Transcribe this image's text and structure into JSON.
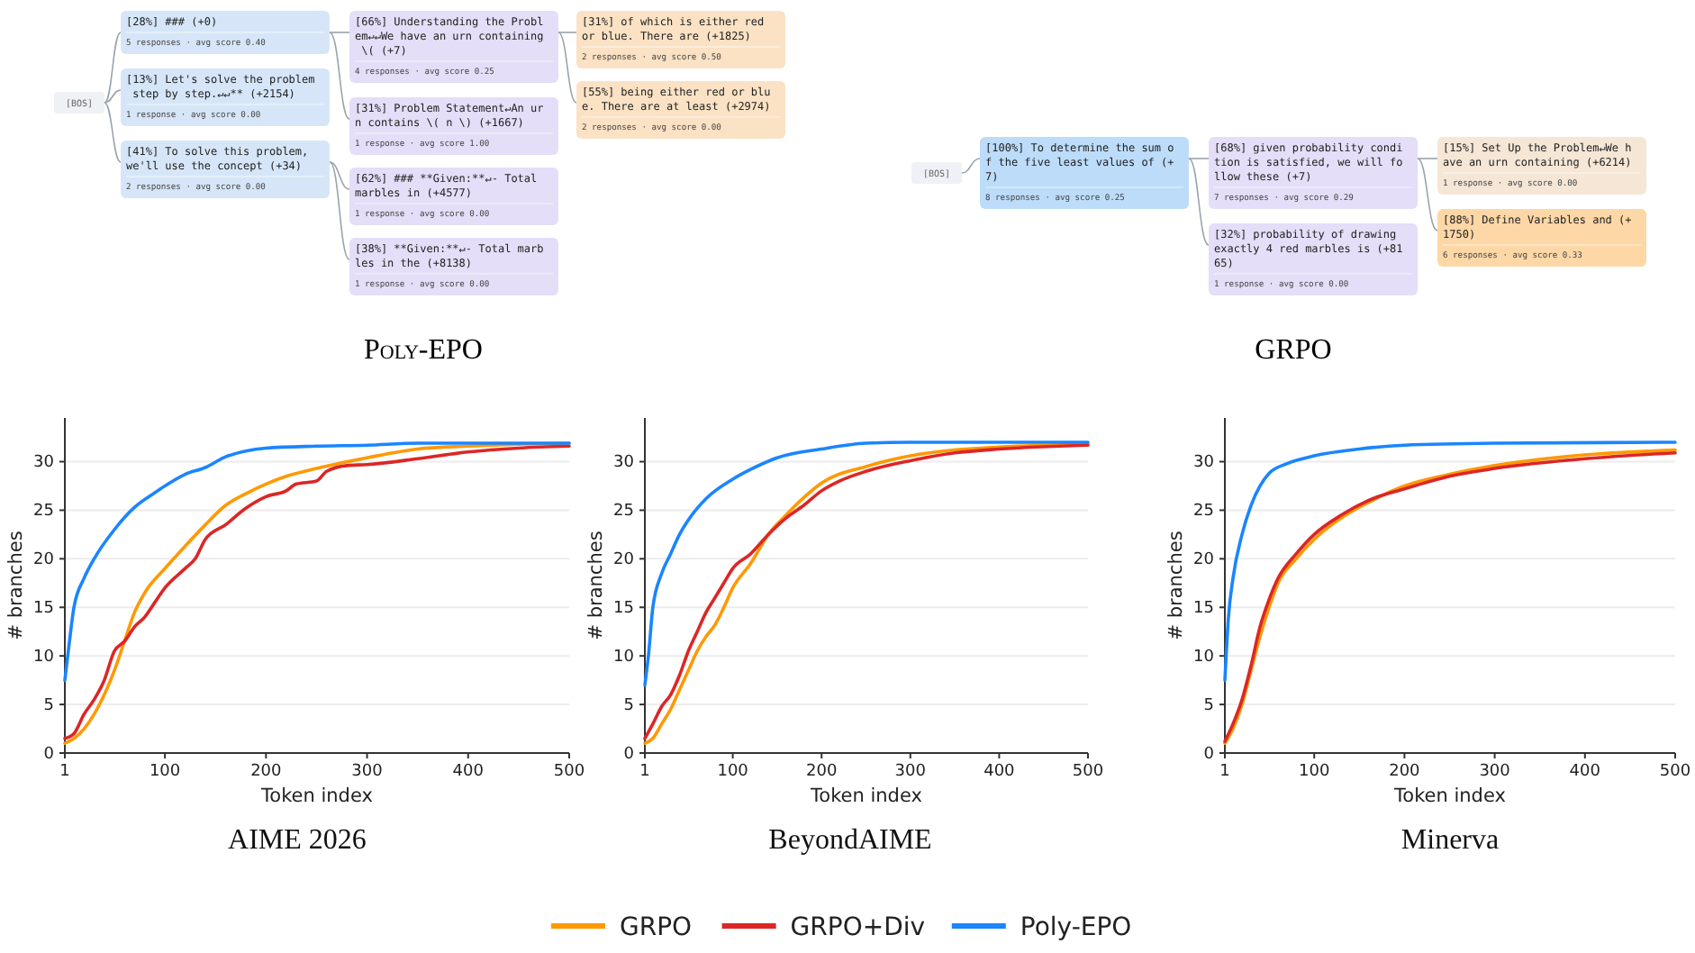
{
  "chart_data": [
    {
      "type": "other",
      "title": "Poly-EPO",
      "annotations": [
        "[BOS]",
        "[28%] ### (+0)",
        "5 responses · avg score 0.40",
        "[13%] Let's solve the problem step by step.↵↵** (+2154)",
        "1 response · avg score 0.00",
        "[41%] To solve this problem, we'll use the concept (+34)",
        "2 responses · avg score 0.00",
        "[66%] Understanding the Problem↵↵We have an urn containing \\( (+7)",
        "4 responses · avg score 0.25",
        "[31%] Problem Statement↵An urn contains \\( n \\) (+1667)",
        "1 response · avg score 1.00",
        "[62%] ### **Given:**↵- Total marbles in (+4577)",
        "1 response · avg score 0.00",
        "[38%] **Given:**↵- Total marbles in the (+8138)",
        "1 response · avg score 0.00",
        "[31%] of which is either red or blue. There are (+1825)",
        "2 responses · avg score 0.50",
        "[55%] being either red or blue. There are at least (+2974)",
        "2 responses · avg score 0.00"
      ]
    },
    {
      "type": "other",
      "title": "GRPO",
      "annotations": [
        "[BOS]",
        "[100%] To determine the sum of the five least values of (+7)",
        "8 responses · avg score 0.25",
        "[68%] given probability condition is satisfied, we will follow these (+7)",
        "7 responses · avg score 0.29",
        "[32%] probability of drawing exactly 4 red marbles is (+8165)",
        "1 response · avg score 0.00",
        "[15%] Set Up the Problem↵We have an urn containing (+6214)",
        "1 response · avg score 0.00",
        "[88%] Define Variables and (+1750)",
        "6 responses · avg score 0.33"
      ]
    },
    {
      "type": "line",
      "title": "AIME 2026",
      "xlabel": "Token index",
      "ylabel": "# branches",
      "xlim": [
        1,
        500
      ],
      "xticks": [
        1,
        100,
        200,
        300,
        400,
        500
      ],
      "ylim": [
        0,
        34.5
      ],
      "yticks": [
        0,
        5,
        10,
        15,
        20,
        25,
        30
      ],
      "grid": "y",
      "series": [
        {
          "color": "#ff9900",
          "x": [
            1,
            10,
            20,
            30,
            40,
            50,
            60,
            70,
            80,
            100,
            120,
            140,
            160,
            180,
            200,
            220,
            250,
            300,
            350,
            400,
            450,
            500
          ],
          "values": [
            1,
            1.5,
            2.5,
            4,
            6,
            8.5,
            11.5,
            14.5,
            16.5,
            19,
            21.3,
            23.5,
            25.5,
            26.7,
            27.7,
            28.5,
            29.3,
            30.4,
            31.3,
            31.6,
            31.8,
            31.9
          ]
        },
        {
          "color": "#dc2626",
          "x": [
            1,
            10,
            20,
            30,
            40,
            50,
            60,
            70,
            80,
            90,
            100,
            120,
            130,
            140,
            160,
            180,
            200,
            220,
            230,
            250,
            260,
            280,
            300,
            350,
            400,
            450,
            500
          ],
          "values": [
            1.5,
            2,
            4,
            5.5,
            7.5,
            10.5,
            11.5,
            13,
            14,
            15.5,
            17,
            19,
            20,
            22,
            23.5,
            25.2,
            26.4,
            27,
            27.7,
            28,
            29,
            29.6,
            29.7,
            30.3,
            31,
            31.4,
            31.6
          ]
        },
        {
          "color": "#1a85ff",
          "x": [
            1,
            5,
            10,
            20,
            30,
            50,
            70,
            90,
            100,
            120,
            140,
            160,
            180,
            200,
            250,
            300,
            350,
            400,
            500
          ],
          "values": [
            7.5,
            11,
            15,
            18,
            20,
            23,
            25.3,
            26.8,
            27.5,
            28.7,
            29.4,
            30.5,
            31.1,
            31.4,
            31.6,
            31.7,
            31.9,
            31.9,
            31.9
          ]
        }
      ]
    },
    {
      "type": "line",
      "title": "BeyondAIME",
      "xlabel": "Token index",
      "ylabel": "# branches",
      "xlim": [
        1,
        500
      ],
      "xticks": [
        1,
        100,
        200,
        300,
        400,
        500
      ],
      "ylim": [
        0,
        34.5
      ],
      "yticks": [
        0,
        5,
        10,
        15,
        20,
        25,
        30
      ],
      "grid": "y",
      "legend": "bottom",
      "series": [
        {
          "name": "GRPO",
          "color": "#ff9900",
          "x": [
            1,
            10,
            20,
            30,
            40,
            50,
            60,
            70,
            80,
            90,
            100,
            120,
            140,
            160,
            180,
            200,
            250,
            300,
            350,
            400,
            500
          ],
          "values": [
            1,
            1.5,
            3,
            4.5,
            6.5,
            8.5,
            10.5,
            12,
            13.2,
            15,
            17,
            19.5,
            22.5,
            24.5,
            26.3,
            27.8,
            29.5,
            30.6,
            31.2,
            31.5,
            31.8
          ]
        },
        {
          "name": "GRPO+Div",
          "color": "#dc2626",
          "x": [
            1,
            10,
            20,
            30,
            40,
            50,
            60,
            70,
            80,
            90,
            100,
            120,
            140,
            160,
            180,
            200,
            220,
            250,
            300,
            350,
            400,
            500
          ],
          "values": [
            1.5,
            3,
            4.8,
            6,
            8,
            10.5,
            12.5,
            14.5,
            16,
            17.5,
            19,
            20.5,
            22.5,
            24.2,
            25.5,
            27,
            28,
            29,
            30.1,
            30.9,
            31.3,
            31.7
          ]
        },
        {
          "name": "Poly-EPO",
          "color": "#1a85ff",
          "x": [
            1,
            5,
            10,
            20,
            30,
            40,
            50,
            70,
            100,
            120,
            150,
            200,
            250,
            300,
            500
          ],
          "values": [
            7,
            10,
            15,
            18.5,
            20.5,
            22.5,
            24,
            26.2,
            28.2,
            29.2,
            30.4,
            31.3,
            31.9,
            32,
            32
          ]
        }
      ]
    },
    {
      "type": "line",
      "title": "Minerva",
      "xlabel": "Token index",
      "ylabel": "# branches",
      "xlim": [
        1,
        500
      ],
      "xticks": [
        1,
        100,
        200,
        300,
        400,
        500
      ],
      "ylim": [
        0,
        34.5
      ],
      "yticks": [
        0,
        5,
        10,
        15,
        20,
        25,
        30
      ],
      "grid": "y",
      "series": [
        {
          "color": "#ff9900",
          "x": [
            1,
            10,
            20,
            30,
            40,
            50,
            60,
            80,
            100,
            130,
            160,
            200,
            250,
            300,
            400,
            500
          ],
          "values": [
            1,
            2.5,
            5,
            8.5,
            12,
            15,
            17.5,
            20,
            22,
            24.2,
            25.8,
            27.5,
            28.7,
            29.6,
            30.7,
            31.2
          ]
        },
        {
          "color": "#dc2626",
          "x": [
            1,
            10,
            20,
            30,
            40,
            50,
            60,
            80,
            100,
            130,
            160,
            200,
            250,
            300,
            400,
            500
          ],
          "values": [
            1.2,
            3,
            5.5,
            9,
            13,
            15.8,
            18,
            20.5,
            22.5,
            24.5,
            26,
            27.2,
            28.5,
            29.3,
            30.3,
            30.9
          ]
        },
        {
          "color": "#1a85ff",
          "x": [
            1,
            5,
            10,
            20,
            30,
            40,
            50,
            70,
            100,
            150,
            200,
            300,
            500
          ],
          "values": [
            7.5,
            14,
            18,
            22.5,
            25.5,
            27.5,
            28.8,
            29.8,
            30.6,
            31.3,
            31.7,
            31.9,
            32
          ]
        }
      ]
    }
  ]
}
